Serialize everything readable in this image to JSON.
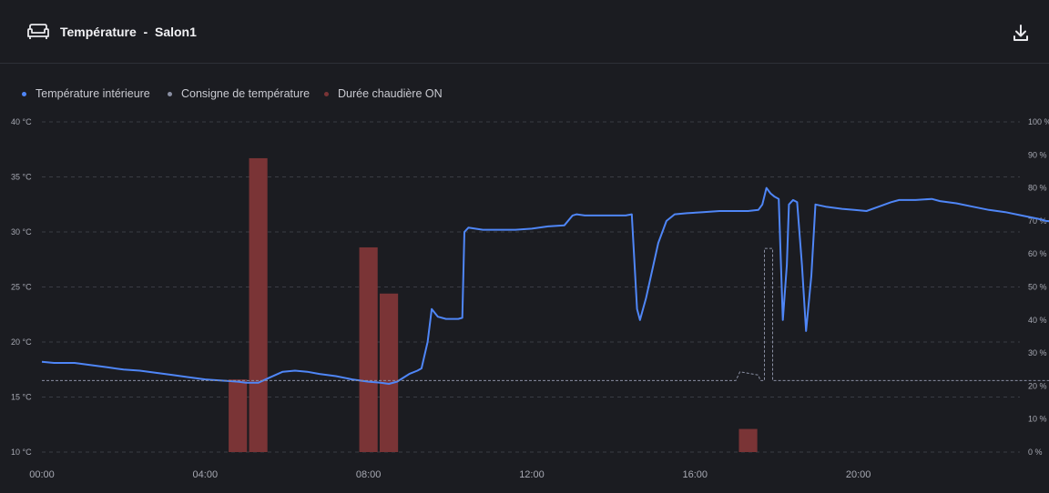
{
  "header": {
    "title": "Température  -  Salon1",
    "sofa_icon": "sofa-icon",
    "download_icon": "download-icon"
  },
  "legend": [
    {
      "label": "Température intérieure",
      "color": "#4f86f7"
    },
    {
      "label": "Consigne de température",
      "color": "#8a8fa3"
    },
    {
      "label": "Durée chaudière ON",
      "color": "#7a3436"
    }
  ],
  "chart_data": {
    "type": "line",
    "x_unit": "hour",
    "xlim": [
      0,
      24
    ],
    "x_ticks": [
      {
        "label": "00:00",
        "value": 0
      },
      {
        "label": "04:00",
        "value": 4
      },
      {
        "label": "08:00",
        "value": 8
      },
      {
        "label": "12:00",
        "value": 12
      },
      {
        "label": "16:00",
        "value": 16
      },
      {
        "label": "20:00",
        "value": 20
      }
    ],
    "y_left": {
      "ylim": [
        10,
        40
      ],
      "ticks": [
        "10 °C",
        "15 °C",
        "20 °C",
        "25 °C",
        "30 °C",
        "35 °C",
        "40 °C"
      ],
      "values": [
        10,
        15,
        20,
        25,
        30,
        35,
        40
      ]
    },
    "y_right": {
      "ylim": [
        0,
        100
      ],
      "ticks": [
        "0 %",
        "10 %",
        "20 %",
        "30 %",
        "40 %",
        "50 %",
        "60 %",
        "70 %",
        "80 %",
        "90 %",
        "100 %"
      ],
      "values": [
        0,
        10,
        20,
        30,
        40,
        50,
        60,
        70,
        80,
        90,
        100
      ]
    },
    "grid": true,
    "legend_position": "top-left",
    "series": [
      {
        "name": "Température intérieure",
        "axis": "left",
        "color": "#4f86f7",
        "style": "solid",
        "points": [
          [
            0.0,
            18.2
          ],
          [
            0.3,
            18.1
          ],
          [
            0.8,
            18.1
          ],
          [
            1.2,
            17.9
          ],
          [
            1.6,
            17.7
          ],
          [
            2.0,
            17.5
          ],
          [
            2.4,
            17.4
          ],
          [
            2.8,
            17.2
          ],
          [
            3.2,
            17.0
          ],
          [
            3.6,
            16.8
          ],
          [
            4.0,
            16.6
          ],
          [
            4.4,
            16.5
          ],
          [
            4.8,
            16.4
          ],
          [
            5.0,
            16.3
          ],
          [
            5.3,
            16.3
          ],
          [
            5.6,
            16.8
          ],
          [
            5.9,
            17.3
          ],
          [
            6.2,
            17.4
          ],
          [
            6.5,
            17.3
          ],
          [
            6.8,
            17.1
          ],
          [
            7.2,
            16.9
          ],
          [
            7.6,
            16.6
          ],
          [
            8.0,
            16.4
          ],
          [
            8.3,
            16.3
          ],
          [
            8.5,
            16.2
          ],
          [
            8.7,
            16.4
          ],
          [
            9.0,
            17.1
          ],
          [
            9.2,
            17.4
          ],
          [
            9.3,
            17.6
          ],
          [
            9.45,
            20.0
          ],
          [
            9.55,
            23.0
          ],
          [
            9.7,
            22.3
          ],
          [
            9.9,
            22.1
          ],
          [
            10.2,
            22.1
          ],
          [
            10.3,
            22.2
          ],
          [
            10.35,
            30.0
          ],
          [
            10.45,
            30.4
          ],
          [
            10.8,
            30.2
          ],
          [
            11.1,
            30.2
          ],
          [
            11.6,
            30.2
          ],
          [
            12.0,
            30.3
          ],
          [
            12.4,
            30.5
          ],
          [
            12.8,
            30.6
          ],
          [
            13.0,
            31.5
          ],
          [
            13.1,
            31.6
          ],
          [
            13.3,
            31.5
          ],
          [
            13.6,
            31.5
          ],
          [
            14.0,
            31.5
          ],
          [
            14.3,
            31.5
          ],
          [
            14.45,
            31.6
          ],
          [
            14.58,
            23.0
          ],
          [
            14.65,
            22.0
          ],
          [
            14.8,
            24.0
          ],
          [
            15.1,
            29.0
          ],
          [
            15.3,
            31.0
          ],
          [
            15.5,
            31.6
          ],
          [
            15.8,
            31.7
          ],
          [
            16.2,
            31.8
          ],
          [
            16.6,
            31.9
          ],
          [
            17.0,
            31.9
          ],
          [
            17.3,
            31.9
          ],
          [
            17.55,
            32.0
          ],
          [
            17.65,
            32.5
          ],
          [
            17.75,
            34.0
          ],
          [
            17.85,
            33.5
          ],
          [
            17.95,
            33.2
          ],
          [
            18.05,
            33.0
          ],
          [
            18.15,
            22.0
          ],
          [
            18.25,
            27.0
          ],
          [
            18.3,
            32.5
          ],
          [
            18.4,
            32.9
          ],
          [
            18.5,
            32.7
          ],
          [
            18.62,
            27.0
          ],
          [
            18.72,
            21.0
          ],
          [
            18.85,
            26.0
          ],
          [
            18.95,
            32.5
          ],
          [
            19.2,
            32.3
          ],
          [
            19.6,
            32.1
          ],
          [
            19.9,
            32.0
          ],
          [
            20.2,
            31.9
          ],
          [
            20.5,
            32.3
          ],
          [
            20.8,
            32.7
          ],
          [
            21.0,
            32.9
          ],
          [
            21.4,
            32.9
          ],
          [
            21.8,
            33.0
          ],
          [
            22.0,
            32.8
          ],
          [
            22.4,
            32.6
          ],
          [
            22.8,
            32.3
          ],
          [
            23.2,
            32.0
          ],
          [
            23.6,
            31.8
          ],
          [
            24.0,
            31.5
          ],
          [
            24.4,
            31.2
          ],
          [
            24.6,
            31.0
          ],
          [
            24.9,
            30.9
          ]
        ]
      },
      {
        "name": "Consigne de température",
        "axis": "left",
        "color": "#8a8fa3",
        "style": "dashed",
        "points": [
          [
            0.0,
            16.5
          ],
          [
            17.0,
            16.5
          ],
          [
            17.1,
            17.3
          ],
          [
            17.25,
            17.2
          ],
          [
            17.55,
            17.0
          ],
          [
            17.6,
            16.5
          ],
          [
            17.7,
            16.5
          ],
          [
            17.7,
            28.5
          ],
          [
            17.9,
            28.5
          ],
          [
            17.9,
            16.5
          ],
          [
            24.9,
            16.5
          ]
        ]
      },
      {
        "name": "Durée chaudière ON",
        "axis": "right",
        "type": "bar",
        "color": "#7a3436",
        "bar_width_hours": 0.45,
        "bars": [
          {
            "x": 4.8,
            "value": 22
          },
          {
            "x": 5.3,
            "value": 89
          },
          {
            "x": 8.0,
            "value": 62
          },
          {
            "x": 8.5,
            "value": 48
          },
          {
            "x": 17.3,
            "value": 7
          }
        ]
      }
    ]
  }
}
